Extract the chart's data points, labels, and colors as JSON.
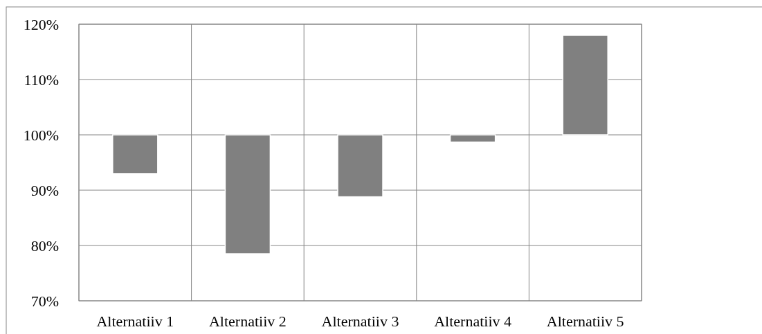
{
  "chart_data": {
    "type": "bar",
    "categories": [
      "Alternatiiv 1",
      "Alternatiiv 2",
      "Alternatiiv 3",
      "Alternatiiv 4",
      "Alternatiiv 5"
    ],
    "base": [
      100,
      100,
      100,
      100,
      100
    ],
    "values": [
      -7,
      -21.5,
      -11.2,
      -1.3,
      18
    ],
    "color": "#808080",
    "ylim": [
      70,
      120
    ],
    "yticks": [
      {
        "value": 70,
        "label": "70%"
      },
      {
        "value": 80,
        "label": "80%"
      },
      {
        "value": 90,
        "label": "90%"
      },
      {
        "value": 100,
        "label": "100%"
      },
      {
        "value": 110,
        "label": "110%"
      },
      {
        "value": 120,
        "label": "120%"
      }
    ],
    "grid": true
  }
}
